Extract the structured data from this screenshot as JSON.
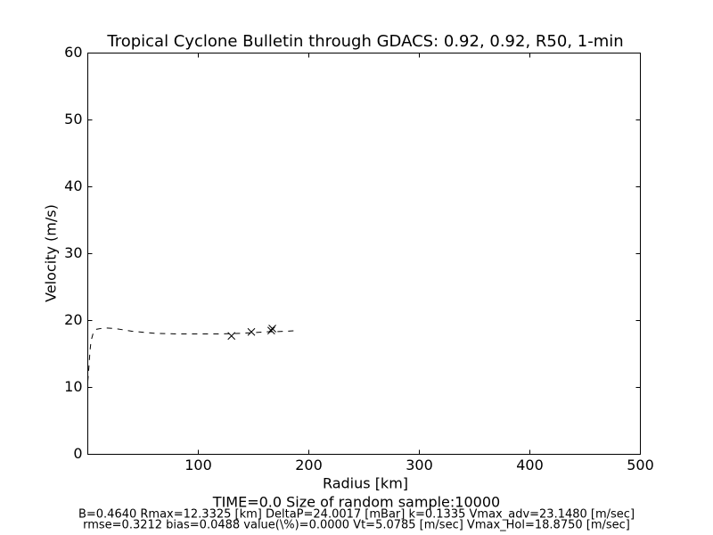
{
  "chart_data": {
    "type": "line",
    "title": "Tropical Cyclone Bulletin through GDACS: 0.92, 0.92, R50, 1-min",
    "x_label": "Radius [km]",
    "y_label": "Velocity (m/s)",
    "footer": [
      "TIME=0.0     Size of random sample:10000",
      "B=0.4640 Rmax=12.3325 [km]  DeltaP=24.0017 [mBar] k=0.1335 Vmax_adv=23.1480 [m/sec]",
      "rmse=0.3212 bias=0.0488 value(\\%)=0.0000 Vt=5.0785 [m/sec] Vmax_Hol=18.8750 [m/sec]"
    ],
    "xlim": [
      0,
      500
    ],
    "xticks": [
      100,
      200,
      300,
      400,
      500
    ],
    "ylim": [
      0,
      60
    ],
    "yticks": [
      0,
      10,
      20,
      30,
      40,
      50,
      60
    ],
    "grid": false,
    "series": [
      {
        "color": "#000000",
        "style": "dashed",
        "x": [
          0,
          1,
          2,
          3,
          5,
          8,
          15,
          25,
          40,
          60,
          80,
          100,
          120,
          140,
          160,
          180,
          190
        ],
        "values": [
          10.9,
          13,
          15.5,
          17,
          18.2,
          18.7,
          18.9,
          18.8,
          18.4,
          18.1,
          18.0,
          18.0,
          18.0,
          18.1,
          18.3,
          18.4,
          18.5
        ]
      },
      {
        "color": "#000000",
        "style": "x-markers",
        "x": [
          130,
          148,
          166,
          167
        ],
        "values": [
          17.7,
          18.3,
          18.5,
          18.8
        ]
      }
    ]
  }
}
